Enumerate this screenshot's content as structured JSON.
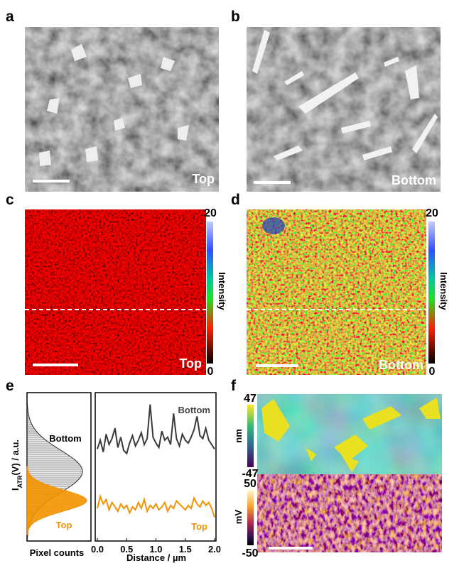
{
  "panels": {
    "a": {
      "label": "a",
      "caption": "Top"
    },
    "b": {
      "label": "b",
      "caption": "Bottom"
    },
    "c": {
      "label": "c",
      "caption": "Top",
      "colorbar": {
        "max": 20,
        "min": 0,
        "title": "Intensity"
      }
    },
    "d": {
      "label": "d",
      "caption": "Bottom",
      "colorbar": {
        "max": 20,
        "min": 0,
        "title": "Intensity"
      }
    },
    "e": {
      "label": "e"
    },
    "f": {
      "label": "f",
      "topography": {
        "max": 47,
        "min": -47,
        "unit": "nm"
      },
      "potential": {
        "max": 50,
        "min": -50,
        "unit": "mV"
      }
    }
  },
  "chart_data": {
    "type": "line",
    "ylabel_parts": [
      "I",
      "ATR",
      "(V) / a.u."
    ],
    "xlabel": "Distance / µm",
    "histogram_label": "Pixel counts",
    "x": [
      0,
      0.05,
      0.1,
      0.15,
      0.2,
      0.25,
      0.3,
      0.35,
      0.4,
      0.45,
      0.5,
      0.55,
      0.6,
      0.65,
      0.7,
      0.75,
      0.8,
      0.85,
      0.9,
      0.95,
      1,
      1.05,
      1.1,
      1.15,
      1.2,
      1.25,
      1.3,
      1.35,
      1.4,
      1.45,
      1.5,
      1.55,
      1.6,
      1.65,
      1.7,
      1.75,
      1.8,
      1.85,
      1.9,
      1.95,
      2
    ],
    "xlim": [
      0,
      2
    ],
    "xticks": [
      {
        "value": 0,
        "label": "0.0"
      },
      {
        "value": 0.5,
        "label": "0.5"
      },
      {
        "value": 1,
        "label": "1.0"
      },
      {
        "value": 1.5,
        "label": "1.5"
      },
      {
        "value": 2,
        "label": "2.0"
      }
    ],
    "ylim": [
      0,
      10
    ],
    "series": [
      {
        "name": "Bottom",
        "color": "#3a3a3a",
        "values": [
          6.2,
          6.8,
          6.0,
          7.2,
          6.5,
          6.9,
          7.6,
          6.3,
          7.0,
          6.1,
          5.9,
          6.6,
          7.1,
          6.4,
          6.8,
          7.3,
          6.5,
          6.9,
          9.2,
          7.0,
          6.6,
          6.3,
          7.4,
          6.8,
          7.0,
          6.5,
          8.6,
          6.9,
          6.4,
          7.2,
          6.8,
          6.6,
          7.0,
          7.5,
          8.4,
          7.1,
          6.9,
          7.6,
          6.8,
          6.5,
          6.2
        ]
      },
      {
        "name": "Top",
        "color": "#f39200",
        "values": [
          2.2,
          3.0,
          2.5,
          2.8,
          2.1,
          2.6,
          2.3,
          2.0,
          2.5,
          2.2,
          2.4,
          1.9,
          2.3,
          2.1,
          2.6,
          2.2,
          2.8,
          2.0,
          2.4,
          2.2,
          2.5,
          2.1,
          2.3,
          2.6,
          2.0,
          2.4,
          2.2,
          2.7,
          2.5,
          2.3,
          2.1,
          2.4,
          2.2,
          2.9,
          2.5,
          2.3,
          2.7,
          2.4,
          2.6,
          2.2,
          1.6
        ]
      }
    ]
  }
}
